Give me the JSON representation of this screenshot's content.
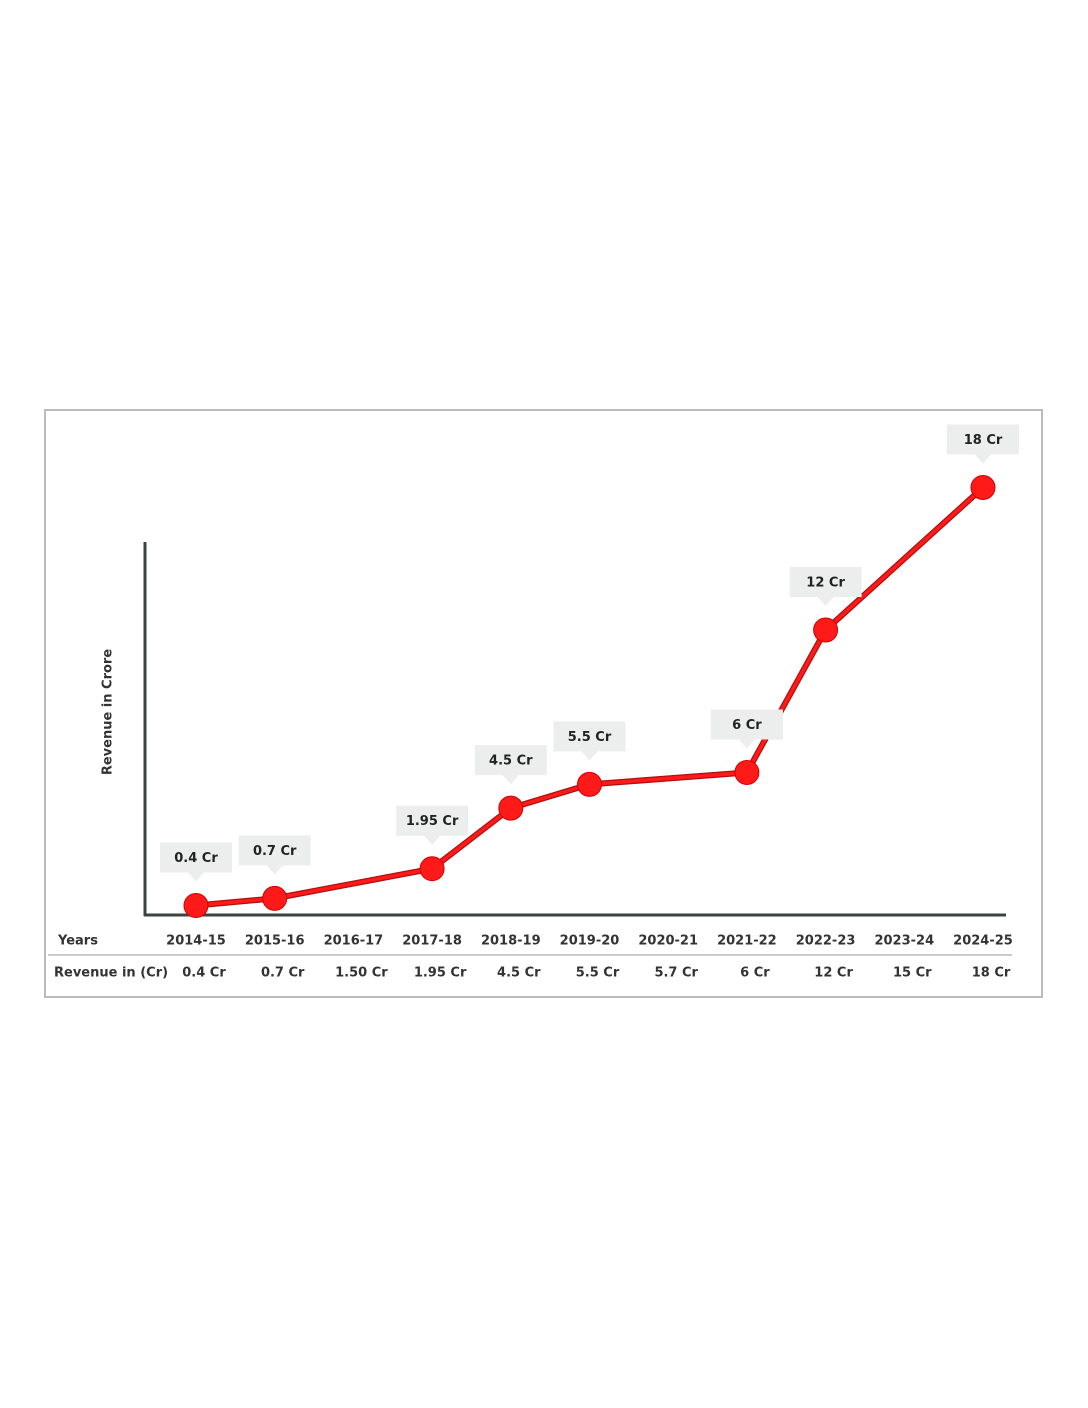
{
  "chart_data": {
    "type": "line",
    "y_label": "Revenue in Crore",
    "x_label": "Years",
    "row_label": "Revenue in (Cr)",
    "categories": [
      "2014-15",
      "2015-16",
      "2016-17",
      "2017-18",
      "2018-19",
      "2019-20",
      "2020-21",
      "2021-22",
      "2022-23",
      "2023-24",
      "2024-25"
    ],
    "values": [
      0.4,
      0.7,
      1.5,
      1.95,
      4.5,
      5.5,
      5.7,
      6,
      12,
      15,
      18
    ],
    "value_labels": [
      "0.4 Cr",
      "0.7 Cr",
      "1.50 Cr",
      "1.95 Cr",
      "4.5 Cr",
      "5.5 Cr",
      "5.7 Cr",
      "6 Cr",
      "12 Cr",
      "15 Cr",
      "18 Cr"
    ],
    "callout_labels": [
      "0.4 Cr",
      "0.7 Cr",
      null,
      "1.95 Cr",
      "4.5 Cr",
      "5.5 Cr",
      null,
      "6 Cr",
      "12 Cr",
      null,
      "18 Cr"
    ],
    "color": "#ff1a1a",
    "ylim": [
      0,
      20
    ]
  }
}
